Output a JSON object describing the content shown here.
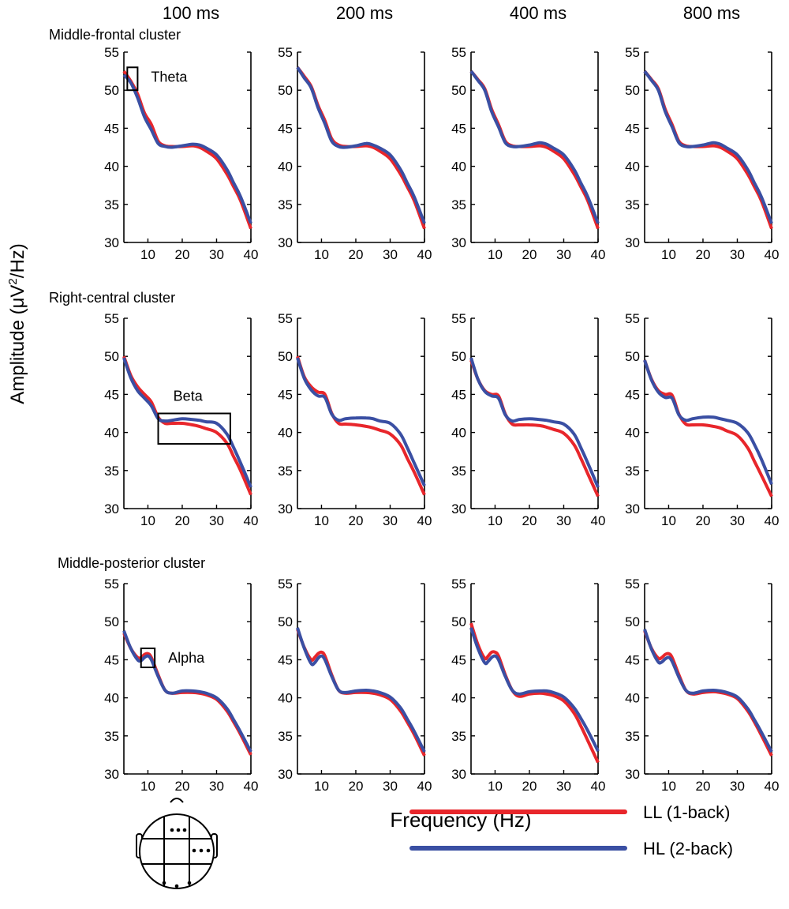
{
  "figure": {
    "ylabel": "Amplitude (μV²/Hz)",
    "ylabel_main": "Amplitude (μV",
    "ylabel_sup": "2",
    "ylabel_tail": "/Hz)",
    "xlabel": "Frequency (Hz)",
    "columns": [
      "100 ms",
      "200 ms",
      "400 ms",
      "800 ms"
    ],
    "rows": [
      "Middle-frontal cluster",
      "Right-central cluster",
      "Middle-posterior cluster"
    ],
    "legend": [
      {
        "label": "LL (1-back)",
        "color": "#e8262b"
      },
      {
        "label": "HL (2-back)",
        "color": "#3a4fa3"
      }
    ]
  },
  "chart_data": {
    "type": "line",
    "x_range": [
      3,
      40
    ],
    "y_range": [
      30,
      55
    ],
    "xticks": [
      10,
      20,
      30,
      40
    ],
    "yticks": [
      30,
      35,
      40,
      45,
      50,
      55
    ],
    "series_names": [
      "LL (1-back)",
      "HL (2-back)"
    ],
    "annotations": [
      {
        "row": 0,
        "col": 0,
        "label": "Theta",
        "x_range": [
          4,
          7
        ],
        "y_range": [
          50,
          53
        ]
      },
      {
        "row": 1,
        "col": 0,
        "label": "Beta",
        "x_range": [
          13,
          34
        ],
        "y_range": [
          38.5,
          42.5
        ]
      },
      {
        "row": 2,
        "col": 0,
        "label": "Alpha",
        "x_range": [
          8,
          12
        ],
        "y_range": [
          44,
          46.5
        ]
      }
    ],
    "panels": [
      [
        {
          "x": [
            3,
            5,
            7,
            9,
            11,
            13,
            15,
            17,
            20,
            23,
            25,
            27,
            30,
            33,
            35,
            37,
            40
          ],
          "LL": [
            52.5,
            51.2,
            49.5,
            47.0,
            45.5,
            43.3,
            42.7,
            42.6,
            42.6,
            42.7,
            42.5,
            42.0,
            41.0,
            39.0,
            37.3,
            35.5,
            31.8
          ],
          "HL": [
            52.0,
            51.0,
            49.0,
            46.5,
            44.8,
            43.0,
            42.6,
            42.5,
            42.7,
            42.9,
            42.8,
            42.4,
            41.5,
            39.6,
            37.8,
            36.0,
            32.5
          ]
        },
        {
          "x": [
            3,
            5,
            7,
            9,
            11,
            13,
            15,
            17,
            20,
            23,
            25,
            27,
            30,
            33,
            35,
            37,
            40
          ],
          "LL": [
            53.0,
            51.8,
            50.5,
            48.0,
            46.0,
            43.6,
            42.8,
            42.6,
            42.6,
            42.7,
            42.5,
            42.0,
            41.0,
            39.0,
            37.3,
            35.5,
            31.8
          ],
          "HL": [
            53.0,
            51.6,
            50.3,
            47.7,
            45.6,
            43.3,
            42.6,
            42.5,
            42.7,
            43.0,
            42.8,
            42.4,
            41.5,
            39.6,
            37.8,
            36.0,
            32.5
          ]
        },
        {
          "x": [
            3,
            5,
            7,
            9,
            11,
            13,
            15,
            17,
            20,
            23,
            25,
            27,
            30,
            33,
            35,
            37,
            40
          ],
          "LL": [
            52.5,
            51.4,
            50.2,
            47.5,
            45.5,
            43.3,
            42.7,
            42.6,
            42.6,
            42.7,
            42.5,
            42.0,
            41.0,
            39.0,
            37.3,
            35.5,
            31.8
          ],
          "HL": [
            52.5,
            51.3,
            50.0,
            47.2,
            45.2,
            43.1,
            42.6,
            42.6,
            42.8,
            43.1,
            42.9,
            42.4,
            41.5,
            39.6,
            37.8,
            36.0,
            32.5
          ]
        },
        {
          "x": [
            3,
            5,
            7,
            9,
            11,
            13,
            15,
            17,
            20,
            23,
            25,
            27,
            30,
            33,
            35,
            37,
            40
          ],
          "LL": [
            52.5,
            51.4,
            50.2,
            47.5,
            45.5,
            43.3,
            42.7,
            42.6,
            42.6,
            42.7,
            42.5,
            42.0,
            41.0,
            39.0,
            37.3,
            35.5,
            31.8
          ],
          "HL": [
            52.5,
            51.3,
            50.0,
            47.2,
            45.2,
            43.1,
            42.6,
            42.6,
            42.8,
            43.1,
            42.9,
            42.4,
            41.5,
            39.6,
            37.8,
            36.0,
            32.5
          ]
        }
      ],
      [
        {
          "x": [
            3,
            5,
            7,
            9,
            11,
            13,
            15,
            17,
            20,
            23,
            25,
            27,
            30,
            33,
            35,
            37,
            40
          ],
          "LL": [
            50.0,
            47.5,
            46.0,
            45.0,
            44.0,
            42.0,
            41.2,
            41.2,
            41.2,
            41.0,
            40.8,
            40.5,
            40.0,
            38.6,
            36.8,
            35.0,
            31.8
          ],
          "HL": [
            49.8,
            47.2,
            45.5,
            44.5,
            43.5,
            41.8,
            41.5,
            41.6,
            41.8,
            41.7,
            41.6,
            41.4,
            41.2,
            39.8,
            38.0,
            36.0,
            32.8
          ]
        },
        {
          "x": [
            3,
            5,
            7,
            9,
            11,
            13,
            15,
            17,
            20,
            23,
            25,
            27,
            30,
            33,
            35,
            37,
            40
          ],
          "LL": [
            50.0,
            47.3,
            46.0,
            45.3,
            45.0,
            42.5,
            41.2,
            41.1,
            41.0,
            40.8,
            40.6,
            40.3,
            39.8,
            38.4,
            36.6,
            34.8,
            31.8
          ],
          "HL": [
            49.8,
            47.1,
            45.6,
            44.8,
            44.6,
            42.4,
            41.6,
            41.8,
            41.9,
            41.9,
            41.8,
            41.5,
            41.2,
            39.8,
            38.0,
            36.0,
            33.0
          ]
        },
        {
          "x": [
            3,
            5,
            7,
            9,
            11,
            13,
            15,
            17,
            20,
            23,
            25,
            27,
            30,
            33,
            35,
            37,
            40
          ],
          "LL": [
            49.5,
            47.0,
            45.5,
            45.0,
            44.8,
            42.4,
            41.1,
            41.0,
            41.0,
            40.9,
            40.7,
            40.4,
            39.9,
            38.4,
            36.6,
            34.6,
            31.6
          ],
          "HL": [
            49.8,
            47.0,
            45.4,
            44.8,
            44.5,
            42.3,
            41.5,
            41.7,
            41.8,
            41.7,
            41.6,
            41.4,
            41.1,
            39.8,
            38.0,
            36.0,
            32.8
          ]
        },
        {
          "x": [
            3,
            5,
            7,
            9,
            11,
            13,
            15,
            17,
            20,
            23,
            25,
            27,
            30,
            33,
            35,
            37,
            40
          ],
          "LL": [
            49.5,
            47.0,
            45.5,
            45.0,
            44.9,
            42.4,
            41.1,
            41.0,
            41.0,
            40.8,
            40.6,
            40.2,
            39.6,
            38.0,
            36.2,
            34.4,
            31.6
          ],
          "HL": [
            49.5,
            46.9,
            45.3,
            44.6,
            44.5,
            42.3,
            41.6,
            41.8,
            42.0,
            42.0,
            41.8,
            41.6,
            41.2,
            40.0,
            38.4,
            36.5,
            33.2
          ]
        }
      ],
      [
        {
          "x": [
            3,
            5,
            7,
            8,
            9,
            10,
            11,
            13,
            15,
            17,
            20,
            23,
            25,
            27,
            30,
            33,
            35,
            37,
            40
          ],
          "LL": [
            48.5,
            46.5,
            45.3,
            45.3,
            45.7,
            45.8,
            45.3,
            43.0,
            41.0,
            40.6,
            40.7,
            40.7,
            40.6,
            40.4,
            39.8,
            38.3,
            36.8,
            35.2,
            32.5
          ],
          "HL": [
            48.8,
            46.5,
            45.0,
            44.9,
            45.3,
            45.5,
            45.0,
            42.8,
            41.0,
            40.6,
            40.9,
            40.9,
            40.8,
            40.6,
            40.0,
            38.6,
            37.1,
            35.5,
            32.9
          ]
        },
        {
          "x": [
            3,
            5,
            7,
            8,
            9,
            10,
            11,
            13,
            15,
            17,
            20,
            23,
            25,
            27,
            30,
            33,
            35,
            37,
            40
          ],
          "LL": [
            49.0,
            46.6,
            45.0,
            45.3,
            45.8,
            46.0,
            45.5,
            43.0,
            41.0,
            40.6,
            40.7,
            40.7,
            40.6,
            40.4,
            39.8,
            38.3,
            36.8,
            35.2,
            32.4
          ],
          "HL": [
            49.2,
            46.5,
            44.5,
            44.6,
            45.2,
            45.5,
            45.0,
            42.8,
            41.0,
            40.7,
            40.9,
            41.0,
            40.9,
            40.7,
            40.1,
            38.7,
            37.2,
            35.6,
            32.9
          ]
        },
        {
          "x": [
            3,
            5,
            7,
            8,
            9,
            10,
            11,
            13,
            15,
            17,
            20,
            23,
            25,
            27,
            30,
            33,
            35,
            37,
            40
          ],
          "LL": [
            49.8,
            47.0,
            45.2,
            45.5,
            46.0,
            46.0,
            45.5,
            43.0,
            41.0,
            40.2,
            40.5,
            40.6,
            40.5,
            40.3,
            39.6,
            38.0,
            36.3,
            34.4,
            31.5
          ],
          "HL": [
            49.2,
            46.5,
            44.6,
            44.8,
            45.3,
            45.5,
            45.0,
            42.8,
            41.0,
            40.5,
            40.8,
            40.9,
            40.9,
            40.7,
            40.1,
            38.7,
            37.3,
            35.7,
            33.0
          ]
        },
        {
          "x": [
            3,
            5,
            7,
            8,
            9,
            10,
            11,
            13,
            15,
            17,
            20,
            23,
            25,
            27,
            30,
            33,
            35,
            37,
            40
          ],
          "LL": [
            48.8,
            46.5,
            45.2,
            45.3,
            45.7,
            45.8,
            45.3,
            43.0,
            41.0,
            40.5,
            40.7,
            40.8,
            40.7,
            40.5,
            39.9,
            38.3,
            36.8,
            35.1,
            32.4
          ],
          "HL": [
            49.0,
            46.4,
            44.7,
            44.7,
            45.1,
            45.3,
            44.8,
            42.7,
            41.0,
            40.6,
            40.9,
            41.0,
            40.9,
            40.7,
            40.1,
            38.6,
            37.1,
            35.5,
            32.9
          ]
        }
      ]
    ]
  }
}
